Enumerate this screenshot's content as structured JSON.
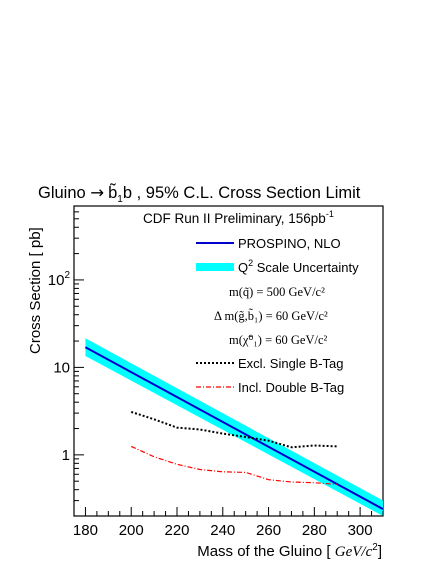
{
  "chart_data": {
    "type": "line",
    "title": "Gluino → b̃₁b , 95% C.L. Cross Section Limit",
    "title_parts": {
      "prefix": "Gluino ",
      "arrow": "→",
      "sbottom": "b̃",
      "sbottom_sub": "1",
      "suffix": "b , 95% C.L. Cross Section Limit"
    },
    "subtitle": "CDF Run II Preliminary, 156pb",
    "subtitle_sup": "-1",
    "xlabel": "Mass of the Gluino [ GeV/c²]",
    "xlabel_parts": {
      "main": "Mass of the Gluino [ ",
      "unit": "GeV/c",
      "sup": "2",
      "close": "]"
    },
    "ylabel": "Cross Section [ pb]",
    "xlim": [
      175,
      310
    ],
    "ylim": [
      0.2,
      700
    ],
    "yscale": "log",
    "x_ticks": [
      180,
      200,
      220,
      240,
      260,
      280,
      300
    ],
    "y_ticks": [
      {
        "value": 1,
        "label": "1",
        "sup": ""
      },
      {
        "value": 10,
        "label": "10",
        "sup": ""
      },
      {
        "value": 100,
        "label": "10",
        "sup": "2"
      }
    ],
    "grid": false,
    "legend_position": "top-right",
    "legend": {
      "prospino": "PROSPINO, NLO",
      "band_prefix": "Q",
      "band_sup": "2",
      "band_suffix": " Scale Uncertainty",
      "mq": "m(q̃) = 500 GeV/c²",
      "dm": "Δ m(g̃,b̃₁) = 60 GeV/c²",
      "mchi": "m(χ̃⁰₁) = 60 GeV/c²",
      "single": "Excl. Single B-Tag",
      "double": "Incl. Double B-Tag"
    },
    "colors": {
      "prospino": "#0000cc",
      "band": "#00ffff",
      "single": "#000000",
      "double": "#ff0000"
    },
    "series": [
      {
        "name": "PROSPINO, NLO",
        "style": "solid",
        "x": [
          180,
          310
        ],
        "y": [
          17.0,
          0.24
        ]
      },
      {
        "name": "Q² Scale Uncertainty",
        "style": "band",
        "x": [
          180,
          310
        ],
        "y_low": [
          13.5,
          0.19
        ],
        "y_high": [
          21.5,
          0.3
        ]
      },
      {
        "name": "Excl. Single B-Tag",
        "style": "dashed",
        "x": [
          200,
          210,
          220,
          230,
          240,
          250,
          260,
          270,
          280,
          290
        ],
        "y": [
          3.1,
          2.55,
          2.05,
          1.95,
          1.75,
          1.6,
          1.45,
          1.22,
          1.28,
          1.25
        ]
      },
      {
        "name": "Incl. Double B-Tag",
        "style": "dashdot",
        "x": [
          200,
          210,
          220,
          230,
          240,
          250,
          260,
          270,
          280,
          290
        ],
        "y": [
          1.25,
          0.95,
          0.78,
          0.68,
          0.64,
          0.63,
          0.52,
          0.49,
          0.48,
          0.46
        ]
      }
    ]
  }
}
